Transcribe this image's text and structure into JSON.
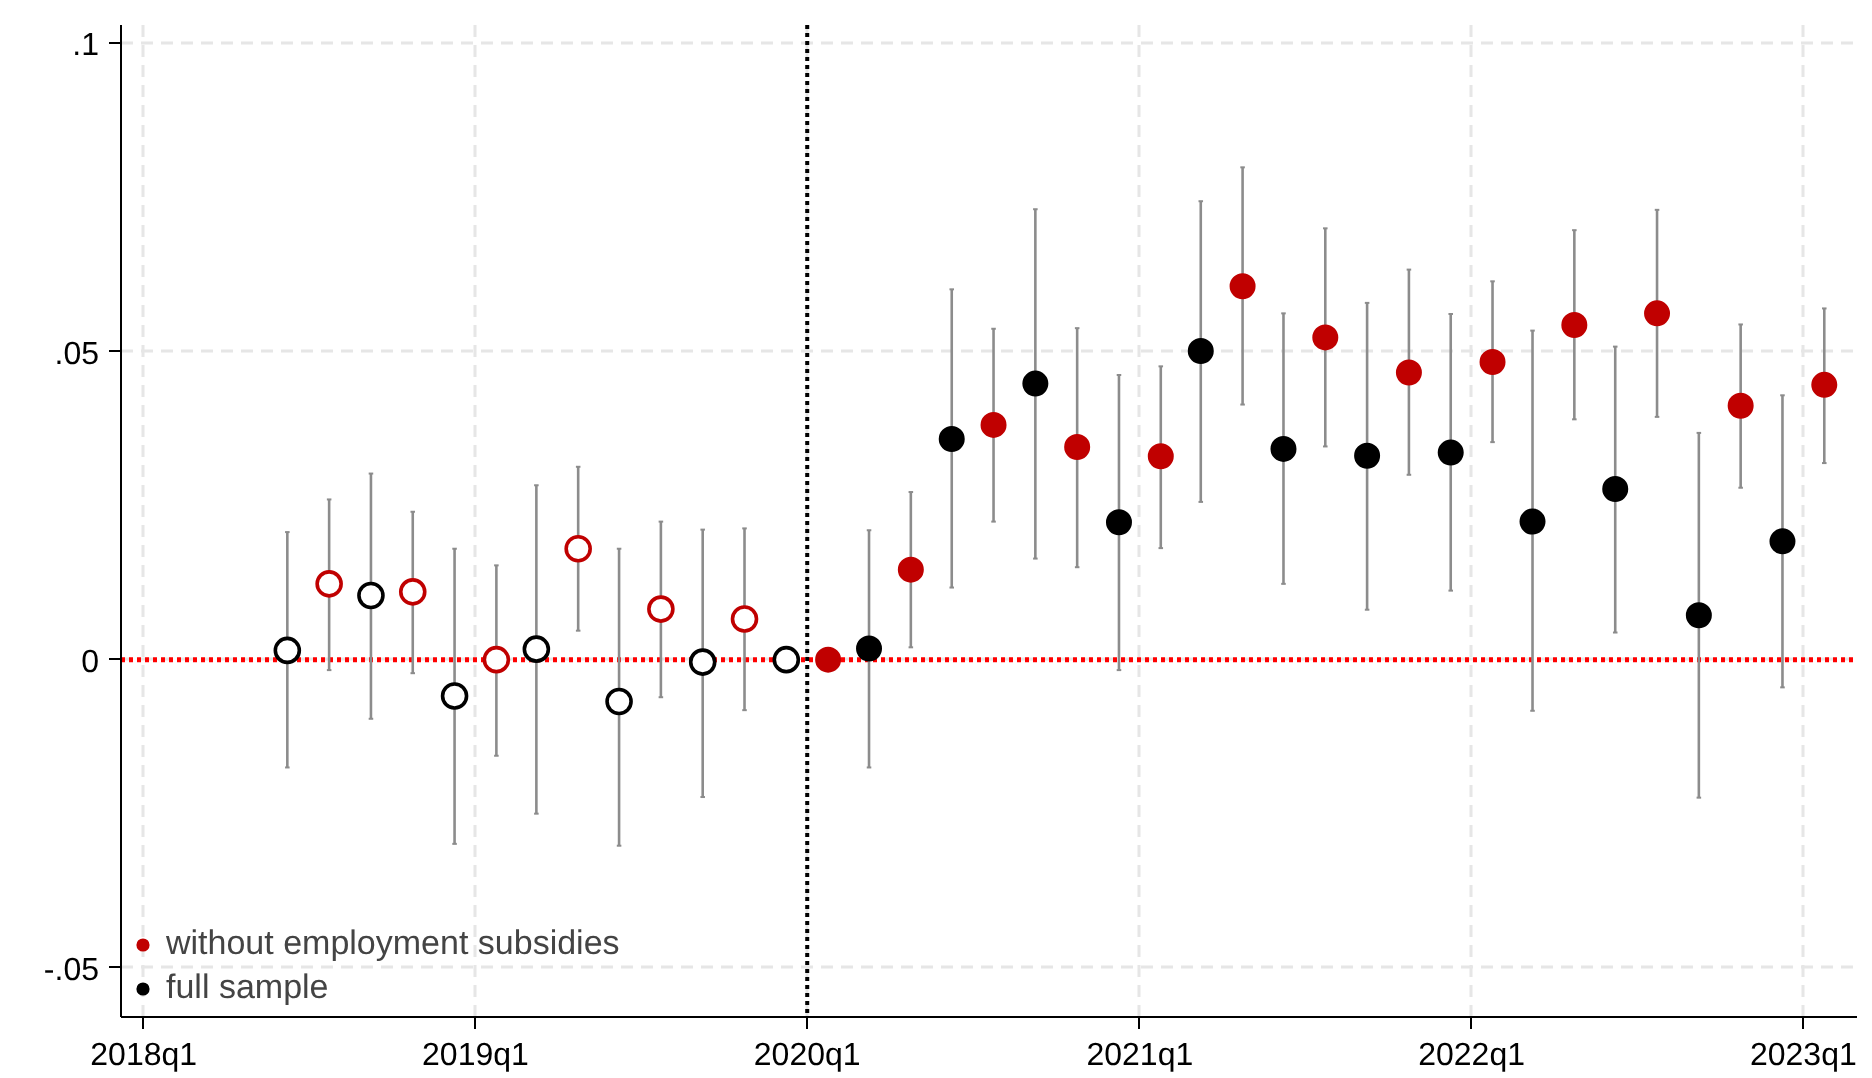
{
  "chart_data": {
    "type": "scatter",
    "xlim": [
      "2017-12-07",
      "2023-03-01"
    ],
    "ylim": [
      -0.058,
      0.103
    ],
    "xticks": [
      {
        "value": "2018-01-01",
        "label": "2018q1"
      },
      {
        "value": "2019-01-01",
        "label": "2019q1"
      },
      {
        "value": "2020-01-01",
        "label": "2020q1"
      },
      {
        "value": "2021-01-01",
        "label": "2021q1"
      },
      {
        "value": "2022-01-01",
        "label": "2022q1"
      },
      {
        "value": "2023-01-01",
        "label": "2023q1"
      }
    ],
    "yticks": [
      {
        "value": -0.05,
        "label": "-.05"
      },
      0,
      {
        "value": 0.05,
        "label": ".05"
      },
      {
        "value": 0.1,
        "label": ".1"
      }
    ],
    "grid": true,
    "legend": "bottom left",
    "marker": "circle",
    "ref_lines": [
      {
        "axis": "y",
        "value": 0,
        "color": "#ff0000",
        "line_style": "dotted"
      },
      {
        "axis": "x",
        "value": "2020-01-01",
        "color": "#000000",
        "line_style": "dotted"
      }
    ],
    "series": [
      {
        "name": "without employment subsidies",
        "color": "#c00000",
        "x": [
          "2018-07-24",
          "2018-10-24",
          "2019-01-24",
          "2019-04-24",
          "2019-07-24",
          "2019-10-24",
          "2020-01-24",
          "2020-04-24",
          "2020-07-24",
          "2020-10-24",
          "2021-01-24",
          "2021-04-24",
          "2021-07-24",
          "2021-10-24",
          "2022-01-24",
          "2022-04-24",
          "2022-07-24",
          "2022-10-24",
          "2023-01-24"
        ],
        "values": [
          0.0123,
          0.011,
          0.0,
          0.018,
          0.0082,
          0.0066,
          0.0,
          0.0146,
          0.0381,
          0.0345,
          0.033,
          0.0606,
          0.0523,
          0.0466,
          0.0483,
          0.0543,
          0.0562,
          0.0412,
          0.0446
        ],
        "errors": [
          [
            -0.0017,
            0.026
          ],
          [
            -0.0022,
            0.024
          ],
          [
            -0.0156,
            0.0153
          ],
          [
            0.0047,
            0.0313
          ],
          [
            -0.0061,
            0.0224
          ],
          [
            -0.0082,
            0.0213
          ],
          null,
          [
            0.002,
            0.0272
          ],
          [
            0.0224,
            0.0537
          ],
          [
            0.015,
            0.0538
          ],
          [
            0.0181,
            0.0476
          ],
          [
            0.0414,
            0.0799
          ],
          [
            0.0346,
            0.07
          ],
          [
            0.03,
            0.0633
          ],
          [
            0.0353,
            0.0614
          ],
          [
            0.039,
            0.0697
          ],
          [
            0.0394,
            0.073
          ],
          [
            0.0279,
            0.0544
          ],
          [
            0.0319,
            0.057
          ]
        ]
      },
      {
        "name": "full sample",
        "color": "#000000",
        "x": [
          "2018-06-08",
          "2018-09-08",
          "2018-12-09",
          "2019-03-09",
          "2019-06-08",
          "2019-09-08",
          "2019-12-09",
          "2020-03-09",
          "2020-06-08",
          "2020-09-08",
          "2020-12-09",
          "2021-03-09",
          "2021-06-08",
          "2021-09-08",
          "2021-12-09",
          "2022-03-09",
          "2022-06-08",
          "2022-09-08",
          "2022-12-09"
        ],
        "values": [
          0.0015,
          0.0104,
          -0.0059,
          0.0017,
          -0.0068,
          -0.0004,
          0.0,
          0.0018,
          0.0358,
          0.0448,
          0.0223,
          0.0501,
          0.0342,
          0.0331,
          0.0336,
          0.0224,
          0.0277,
          0.0072,
          0.0192
        ],
        "errors": [
          [
            -0.0175,
            0.0207
          ],
          [
            -0.0096,
            0.0302
          ],
          [
            -0.0299,
            0.018
          ],
          [
            -0.025,
            0.0283
          ],
          [
            -0.0302,
            0.018
          ],
          [
            -0.0223,
            0.0211
          ],
          null,
          [
            -0.0175,
            0.021
          ],
          [
            0.0117,
            0.0601
          ],
          [
            0.0164,
            0.0731
          ],
          [
            -0.0017,
            0.0462
          ],
          [
            0.0256,
            0.0744
          ],
          [
            0.0123,
            0.0562
          ],
          [
            0.0081,
            0.0579
          ],
          [
            0.0112,
            0.0561
          ],
          [
            -0.0083,
            0.0534
          ],
          [
            0.0044,
            0.0508
          ],
          [
            -0.0224,
            0.0368
          ],
          [
            -0.0045,
            0.0429
          ]
        ]
      }
    ]
  }
}
